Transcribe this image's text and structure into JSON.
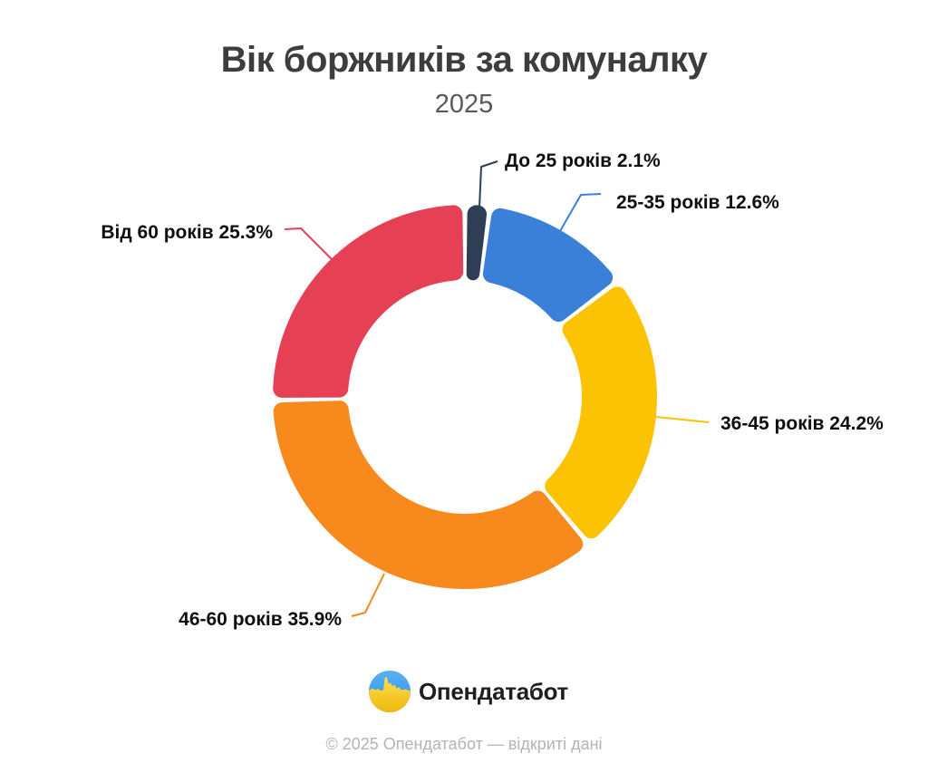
{
  "chart_data": {
    "type": "pie",
    "variant": "donut",
    "title": "Вік боржників за комуналку",
    "subtitle": "2025",
    "unit": "%",
    "start_angle_deg": 0,
    "direction": "clockwise",
    "inner_radius_ratio": 0.61,
    "legend": "none",
    "labels": "callouts-with-leader-lines",
    "slices": [
      {
        "label": "До 25 років",
        "value": 2.1,
        "display": "До 25 років 2.1%",
        "color": "#2e3e55"
      },
      {
        "label": "25-35 років",
        "value": 12.6,
        "display": "25-35 років 12.6%",
        "color": "#3b80d8"
      },
      {
        "label": "36-45 років",
        "value": 24.2,
        "display": "36-45 років 24.2%",
        "color": "#fcc204"
      },
      {
        "label": "46-60 років",
        "value": 35.9,
        "display": "46-60 років 35.9%",
        "color": "#f8891c"
      },
      {
        "label": "Від 60 років",
        "value": 25.3,
        "display": "Від 60 років 25.3%",
        "color": "#e64054"
      }
    ]
  },
  "branding": {
    "name": "Опендатабот",
    "icon": "opendatabot-circle-flag-skyline-icon",
    "icon_colors": {
      "sky_blue": "#3f9fe9",
      "field_yellow": "#f7c713"
    }
  },
  "footer": {
    "text": "© 2025 Опендатабот — відкриті дані"
  }
}
